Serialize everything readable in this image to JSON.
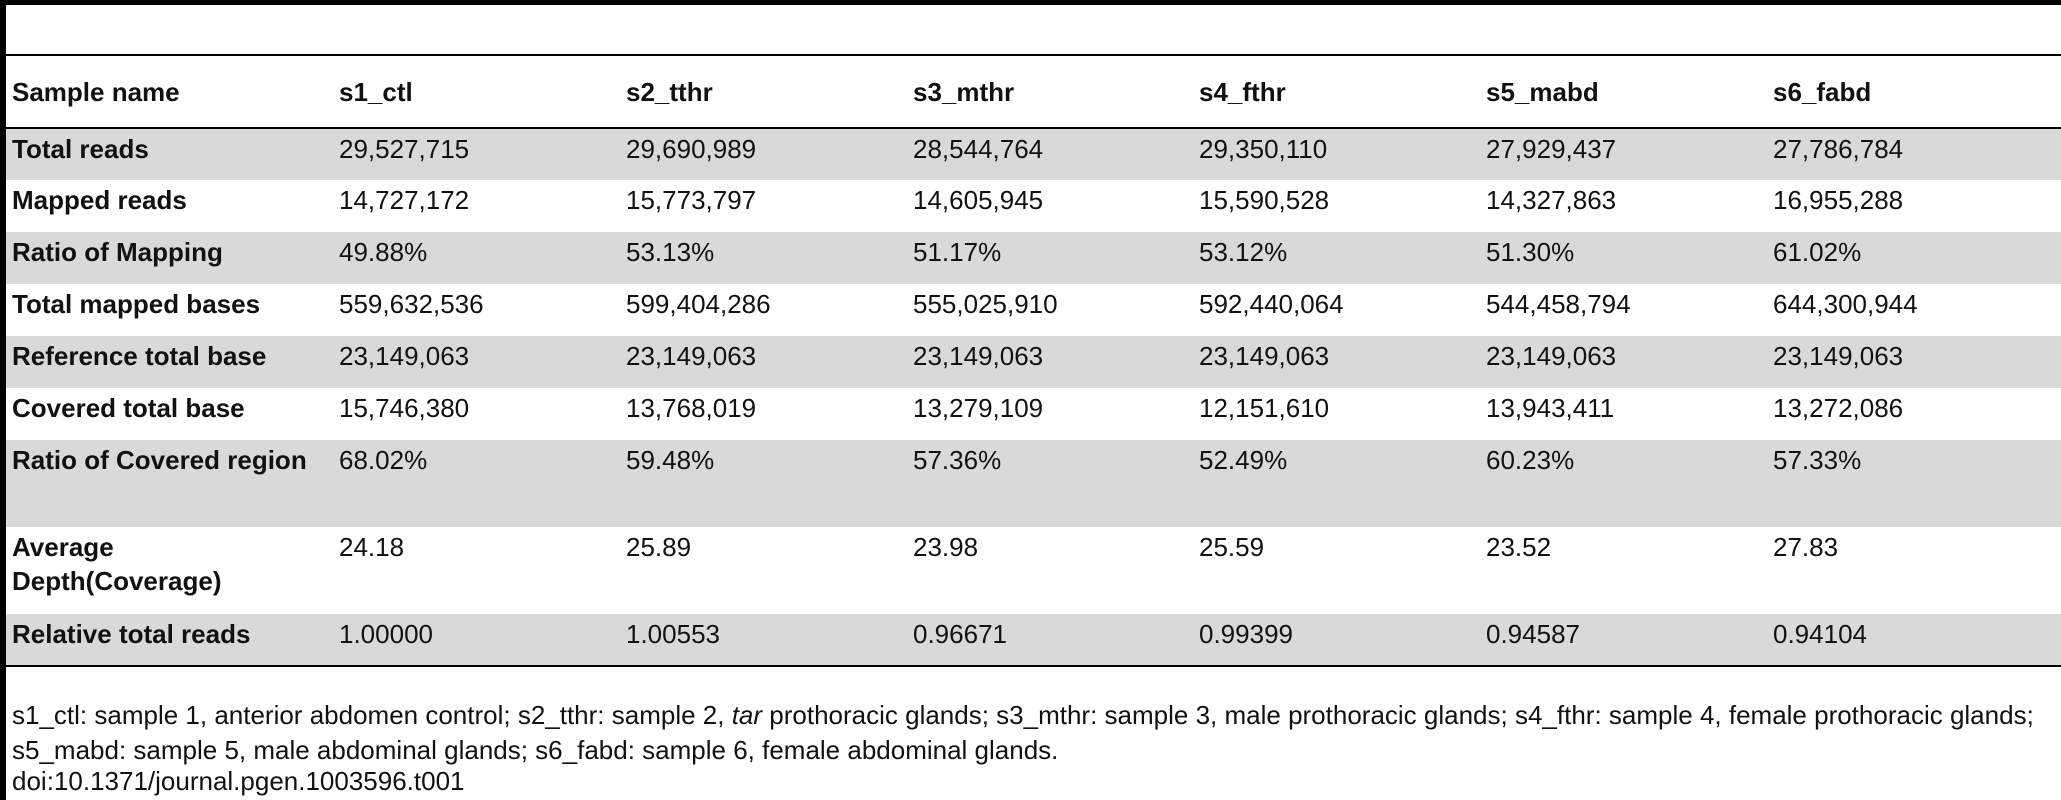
{
  "table": {
    "headers": [
      "Sample name",
      "s1_ctl",
      "s2_tthr",
      "s3_mthr",
      "s4_fthr",
      "s5_mabd",
      "s6_fabd"
    ],
    "rows": [
      {
        "label": "Total reads",
        "values": [
          "29,527,715",
          "29,690,989",
          "28,544,764",
          "29,350,110",
          "27,929,437",
          "27,786,784"
        ]
      },
      {
        "label": "Mapped reads",
        "values": [
          "14,727,172",
          "15,773,797",
          "14,605,945",
          "15,590,528",
          "14,327,863",
          "16,955,288"
        ]
      },
      {
        "label": "Ratio of Mapping",
        "values": [
          "49.88%",
          "53.13%",
          "51.17%",
          "53.12%",
          "51.30%",
          "61.02%"
        ]
      },
      {
        "label": "Total mapped bases",
        "values": [
          "559,632,536",
          "599,404,286",
          "555,025,910",
          "592,440,064",
          "544,458,794",
          "644,300,944"
        ]
      },
      {
        "label": "Reference total base",
        "values": [
          "23,149,063",
          "23,149,063",
          "23,149,063",
          "23,149,063",
          "23,149,063",
          "23,149,063"
        ]
      },
      {
        "label": "Covered total base",
        "values": [
          "15,746,380",
          "13,768,019",
          "13,279,109",
          "12,151,610",
          "13,943,411",
          "13,272,086"
        ]
      },
      {
        "label": "Ratio of Covered region",
        "values": [
          "68.02%",
          "59.48%",
          "57.36%",
          "52.49%",
          "60.23%",
          "57.33%"
        ]
      },
      {
        "label": "Average Depth(Coverage)",
        "values": [
          "24.18",
          "25.89",
          "23.98",
          "25.59",
          "23.52",
          "27.83"
        ]
      },
      {
        "label": "Relative total reads",
        "values": [
          "1.00000",
          "1.00553",
          "0.96671",
          "0.99399",
          "0.94587",
          "0.94104"
        ]
      }
    ]
  },
  "footnote": {
    "part1": "s1_ctl: sample 1, anterior abdomen control; s2_tthr: sample 2, ",
    "italic": "tar",
    "part2": " prothoracic glands; s3_mthr: sample 3, male prothoracic glands; s4_fthr: sample 4, female prothoracic glands; s5_mabd: sample 5, male abdominal glands; s6_fabd: sample 6, female abdominal glands.",
    "doi": "doi:10.1371/journal.pgen.1003596.t001"
  }
}
